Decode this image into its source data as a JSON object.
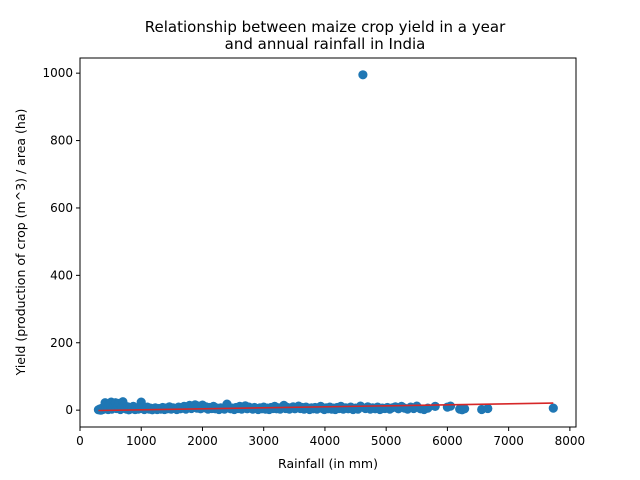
{
  "chart_data": {
    "type": "scatter",
    "title_lines": [
      "Relationship between maize crop yield in a year",
      "and annual rainfall in India"
    ],
    "xlabel": "Rainfall (in mm)",
    "ylabel": "Yield (production of crop (m^3) / area (ha)",
    "xlim": [
      0,
      8100
    ],
    "ylim": [
      -50,
      1045
    ],
    "x_ticks": [
      0,
      1000,
      2000,
      3000,
      4000,
      5000,
      6000,
      7000,
      8000
    ],
    "y_ticks": [
      0,
      200,
      400,
      600,
      800,
      1000
    ],
    "grid": false,
    "legend": "none",
    "colors": {
      "points": "#1f77b4",
      "trend": "#d62728"
    },
    "points": [
      [
        300,
        1
      ],
      [
        320,
        3
      ],
      [
        340,
        0
      ],
      [
        350,
        5
      ],
      [
        370,
        2
      ],
      [
        390,
        8
      ],
      [
        400,
        12
      ],
      [
        410,
        22
      ],
      [
        420,
        4
      ],
      [
        440,
        15
      ],
      [
        450,
        6
      ],
      [
        460,
        2
      ],
      [
        480,
        18
      ],
      [
        500,
        10
      ],
      [
        510,
        24
      ],
      [
        520,
        3
      ],
      [
        540,
        9
      ],
      [
        560,
        16
      ],
      [
        580,
        22
      ],
      [
        600,
        5
      ],
      [
        620,
        12
      ],
      [
        640,
        20
      ],
      [
        660,
        2
      ],
      [
        680,
        8
      ],
      [
        700,
        25
      ],
      [
        720,
        14
      ],
      [
        740,
        6
      ],
      [
        760,
        3
      ],
      [
        780,
        10
      ],
      [
        800,
        1
      ],
      [
        820,
        7
      ],
      [
        850,
        4
      ],
      [
        870,
        11
      ],
      [
        900,
        2
      ],
      [
        920,
        6
      ],
      [
        950,
        3
      ],
      [
        980,
        5
      ],
      [
        1000,
        24
      ],
      [
        1020,
        8
      ],
      [
        1050,
        2
      ],
      [
        1080,
        5
      ],
      [
        1100,
        9
      ],
      [
        1130,
        3
      ],
      [
        1150,
        6
      ],
      [
        1180,
        1
      ],
      [
        1200,
        4
      ],
      [
        1230,
        7
      ],
      [
        1260,
        2
      ],
      [
        1290,
        5
      ],
      [
        1320,
        3
      ],
      [
        1350,
        8
      ],
      [
        1380,
        2
      ],
      [
        1400,
        6
      ],
      [
        1430,
        4
      ],
      [
        1460,
        10
      ],
      [
        1490,
        3
      ],
      [
        1520,
        7
      ],
      [
        1550,
        5
      ],
      [
        1580,
        2
      ],
      [
        1610,
        9
      ],
      [
        1640,
        4
      ],
      [
        1670,
        6
      ],
      [
        1700,
        11
      ],
      [
        1730,
        3
      ],
      [
        1760,
        8
      ],
      [
        1790,
        14
      ],
      [
        1820,
        5
      ],
      [
        1850,
        9
      ],
      [
        1880,
        16
      ],
      [
        1910,
        6
      ],
      [
        1940,
        12
      ],
      [
        1970,
        4
      ],
      [
        2000,
        15
      ],
      [
        2030,
        7
      ],
      [
        2060,
        10
      ],
      [
        2090,
        3
      ],
      [
        2120,
        8
      ],
      [
        2150,
        5
      ],
      [
        2180,
        11
      ],
      [
        2210,
        4
      ],
      [
        2240,
        6
      ],
      [
        2270,
        2
      ],
      [
        2300,
        7
      ],
      [
        2330,
        5
      ],
      [
        2360,
        3
      ],
      [
        2400,
        18
      ],
      [
        2430,
        9
      ],
      [
        2460,
        4
      ],
      [
        2490,
        6
      ],
      [
        2520,
        2
      ],
      [
        2550,
        8
      ],
      [
        2580,
        5
      ],
      [
        2610,
        11
      ],
      [
        2640,
        3
      ],
      [
        2670,
        7
      ],
      [
        2700,
        13
      ],
      [
        2730,
        4
      ],
      [
        2760,
        9
      ],
      [
        2790,
        6
      ],
      [
        2820,
        3
      ],
      [
        2850,
        8
      ],
      [
        2880,
        5
      ],
      [
        2910,
        2
      ],
      [
        2940,
        7
      ],
      [
        2970,
        4
      ],
      [
        3000,
        9
      ],
      [
        3030,
        3
      ],
      [
        3060,
        6
      ],
      [
        3090,
        2
      ],
      [
        3120,
        8
      ],
      [
        3150,
        5
      ],
      [
        3180,
        11
      ],
      [
        3210,
        4
      ],
      [
        3240,
        7
      ],
      [
        3270,
        3
      ],
      [
        3300,
        9
      ],
      [
        3330,
        14
      ],
      [
        3360,
        5
      ],
      [
        3390,
        8
      ],
      [
        3420,
        3
      ],
      [
        3450,
        6
      ],
      [
        3480,
        10
      ],
      [
        3510,
        4
      ],
      [
        3540,
        7
      ],
      [
        3570,
        12
      ],
      [
        3600,
        5
      ],
      [
        3630,
        8
      ],
      [
        3660,
        3
      ],
      [
        3690,
        9
      ],
      [
        3720,
        6
      ],
      [
        3750,
        2
      ],
      [
        3780,
        7
      ],
      [
        3810,
        4
      ],
      [
        3840,
        8
      ],
      [
        3870,
        3
      ],
      [
        3900,
        6
      ],
      [
        3930,
        11
      ],
      [
        3960,
        5
      ],
      [
        3990,
        2
      ],
      [
        4020,
        7
      ],
      [
        4050,
        4
      ],
      [
        4080,
        9
      ],
      [
        4110,
        3
      ],
      [
        4140,
        6
      ],
      [
        4170,
        2
      ],
      [
        4200,
        8
      ],
      [
        4230,
        5
      ],
      [
        4260,
        11
      ],
      [
        4300,
        3
      ],
      [
        4340,
        7
      ],
      [
        4380,
        4
      ],
      [
        4420,
        9
      ],
      [
        4460,
        2
      ],
      [
        4500,
        6
      ],
      [
        4540,
        3
      ],
      [
        4580,
        12
      ],
      [
        4620,
        995
      ],
      [
        4660,
        5
      ],
      [
        4700,
        10
      ],
      [
        4740,
        3
      ],
      [
        4780,
        7
      ],
      [
        4820,
        4
      ],
      [
        4860,
        9
      ],
      [
        4900,
        2
      ],
      [
        4940,
        6
      ],
      [
        4980,
        5
      ],
      [
        5020,
        8
      ],
      [
        5060,
        3
      ],
      [
        5100,
        7
      ],
      [
        5150,
        10
      ],
      [
        5200,
        4
      ],
      [
        5250,
        11
      ],
      [
        5300,
        6
      ],
      [
        5350,
        3
      ],
      [
        5400,
        9
      ],
      [
        5450,
        5
      ],
      [
        5500,
        12
      ],
      [
        5560,
        4
      ],
      [
        5620,
        2
      ],
      [
        5680,
        6
      ],
      [
        5800,
        11
      ],
      [
        6000,
        9
      ],
      [
        6050,
        12
      ],
      [
        6200,
        3
      ],
      [
        6240,
        1
      ],
      [
        6280,
        4
      ],
      [
        6560,
        2
      ],
      [
        6660,
        5
      ],
      [
        7730,
        6
      ]
    ],
    "trend_line": {
      "x": [
        300,
        7730
      ],
      "y": [
        -1,
        21
      ]
    }
  }
}
